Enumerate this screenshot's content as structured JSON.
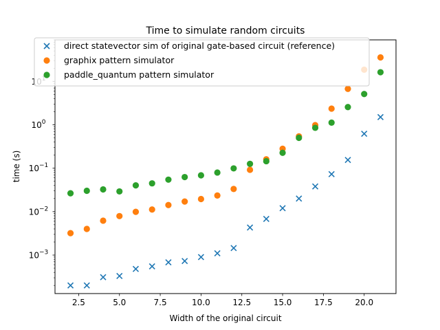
{
  "chart_data": {
    "type": "scatter",
    "title": "Time to simulate random circuits",
    "xlabel": "Width of the original circuit",
    "ylabel": "time (s)",
    "xlim": [
      1.05,
      21.95
    ],
    "ylim": [
      0.00013,
      90
    ],
    "yscale": "log",
    "x_ticks": [
      2.5,
      5.0,
      7.5,
      10.0,
      12.5,
      15.0,
      17.5,
      20.0
    ],
    "x_tick_labels": [
      "2.5",
      "5.0",
      "7.5",
      "10.0",
      "12.5",
      "15.0",
      "17.5",
      "20.0"
    ],
    "y_ticks": [
      0.001,
      0.01,
      0.1,
      1,
      10
    ],
    "y_tick_labels": [
      "10",
      "10",
      "10",
      "10",
      "10"
    ],
    "y_tick_exponents": [
      "−3",
      "−2",
      "−1",
      "0",
      "1"
    ],
    "legend_position": "top-left",
    "grid": false,
    "series": [
      {
        "name": "direct statevector sim of original gate-based circuit (reference)",
        "marker": "x",
        "color": "#1f77b4",
        "x": [
          2,
          3,
          4,
          5,
          6,
          7,
          8,
          9,
          10,
          11,
          12,
          13,
          14,
          15,
          16,
          17,
          18,
          19,
          20,
          21
        ],
        "y": [
          0.0002,
          0.0002,
          0.00031,
          0.00033,
          0.00048,
          0.00055,
          0.00068,
          0.00073,
          0.0009,
          0.0011,
          0.00145,
          0.0043,
          0.0068,
          0.012,
          0.02,
          0.038,
          0.073,
          0.155,
          0.62,
          1.5
        ]
      },
      {
        "name": "graphix pattern simulator",
        "marker": "o",
        "color": "#ff7f0e",
        "x": [
          2,
          3,
          4,
          5,
          6,
          7,
          8,
          9,
          10,
          11,
          12,
          13,
          14,
          15,
          16,
          17,
          18,
          19,
          20,
          21
        ],
        "y": [
          0.0032,
          0.004,
          0.0062,
          0.0079,
          0.0099,
          0.0112,
          0.0142,
          0.0171,
          0.0195,
          0.0235,
          0.0332,
          0.092,
          0.16,
          0.28,
          0.54,
          0.98,
          2.35,
          6.7,
          18.5,
          35.5
        ]
      },
      {
        "name": "paddle_quantum pattern simulator",
        "marker": "o",
        "color": "#2ca02c",
        "x": [
          2,
          3,
          4,
          5,
          6,
          7,
          8,
          9,
          10,
          11,
          12,
          13,
          14,
          15,
          16,
          17,
          18,
          19,
          20,
          21
        ],
        "y": [
          0.0265,
          0.0302,
          0.0325,
          0.0292,
          0.0403,
          0.0448,
          0.0545,
          0.0625,
          0.0685,
          0.0795,
          0.099,
          0.126,
          0.145,
          0.226,
          0.5,
          0.85,
          1.12,
          2.55,
          5.1,
          16.2
        ]
      }
    ]
  }
}
